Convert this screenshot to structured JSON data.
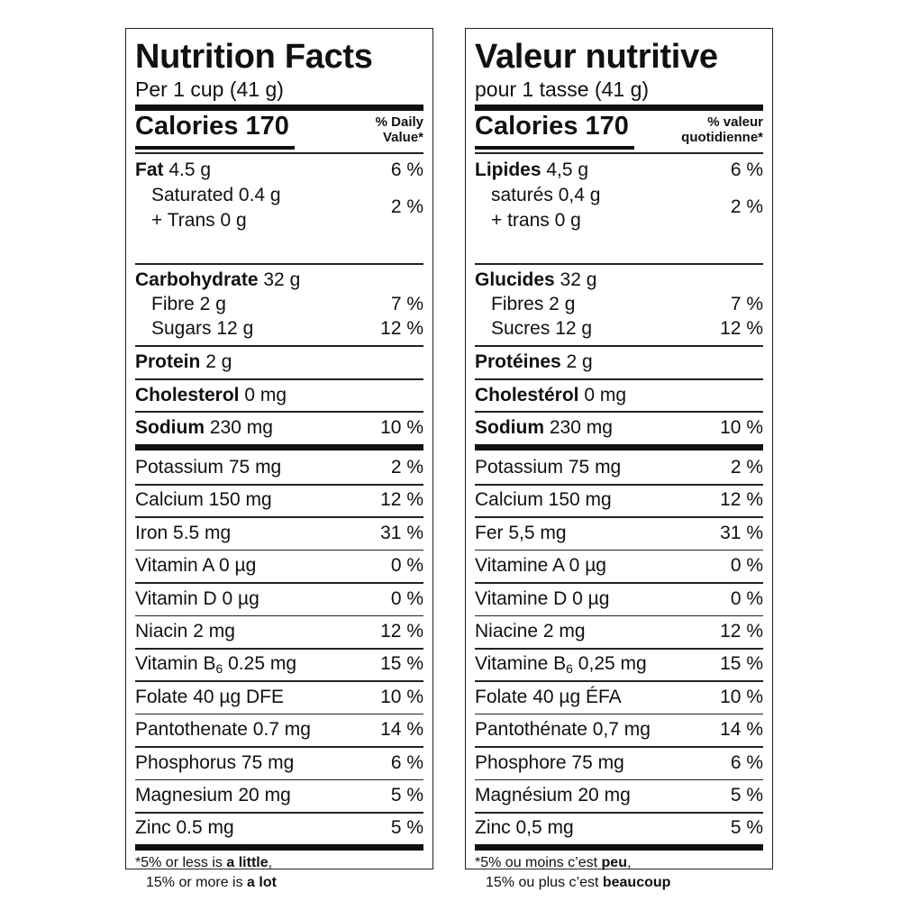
{
  "en": {
    "title": "Nutrition Facts",
    "serving": "Per 1 cup (41 g)",
    "calories": "Calories 170",
    "dv_line1": "% Daily",
    "dv_line2": "Value*",
    "fat": {
      "label": "Fat",
      "amount": "4.5 g",
      "dv": "6 %"
    },
    "saturated": "Saturated 0.4 g",
    "trans": "+ Trans 0 g",
    "sat_trans_dv": "2 %",
    "carb": {
      "label": "Carbohydrate",
      "amount": "32 g"
    },
    "fibre": {
      "label": "Fibre 2 g",
      "dv": "7 %"
    },
    "sugars": {
      "label": "Sugars 12 g",
      "dv": "12 %"
    },
    "protein": {
      "label": "Protein",
      "amount": "2 g"
    },
    "cholesterol": {
      "label": "Cholesterol",
      "amount": "0 mg"
    },
    "sodium": {
      "label": "Sodium",
      "amount": "230 mg",
      "dv": "10 %"
    },
    "micros": [
      {
        "label": "Potassium 75 mg",
        "dv": "2 %"
      },
      {
        "label": "Calcium 150 mg",
        "dv": "12 %"
      },
      {
        "label": "Iron 5.5 mg",
        "dv": "31 %"
      },
      {
        "label": "Vitamin A 0 µg",
        "dv": "0 %"
      },
      {
        "label": "Vitamin D 0 µg",
        "dv": "0 %"
      },
      {
        "label": "Niacin 2 mg",
        "dv": "12 %"
      },
      {
        "label_pre": "Vitamin B",
        "label_sub": "6",
        "label_post": " 0.25 mg",
        "dv": "15 %"
      },
      {
        "label": "Folate 40 µg DFE",
        "dv": "10 %"
      },
      {
        "label": "Pantothenate 0.7 mg",
        "dv": "14 %"
      },
      {
        "label": "Phosphorus 75 mg",
        "dv": "6 %"
      },
      {
        "label": "Magnesium 20 mg",
        "dv": "5 %"
      },
      {
        "label": "Zinc 0.5 mg",
        "dv": "5 %"
      }
    ],
    "foot1_pre": "*5% or less is ",
    "foot1_bold": "a little",
    "foot1_post": ",",
    "foot2_pre": "15% or more is ",
    "foot2_bold": "a lot"
  },
  "fr": {
    "title": "Valeur nutritive",
    "serving": "pour 1 tasse (41 g)",
    "calories": "Calories 170",
    "dv_line1": "% valeur",
    "dv_line2": "quotidienne*",
    "fat": {
      "label": "Lipides",
      "amount": "4,5 g",
      "dv": "6 %"
    },
    "saturated": "saturés 0,4 g",
    "trans": "+ trans 0 g",
    "sat_trans_dv": "2 %",
    "carb": {
      "label": "Glucides",
      "amount": "32 g"
    },
    "fibre": {
      "label": "Fibres 2 g",
      "dv": "7 %"
    },
    "sugars": {
      "label": "Sucres 12 g",
      "dv": "12 %"
    },
    "protein": {
      "label": "Protéines",
      "amount": "2 g"
    },
    "cholesterol": {
      "label": "Cholestérol",
      "amount": "0 mg"
    },
    "sodium": {
      "label": "Sodium",
      "amount": "230 mg",
      "dv": "10 %"
    },
    "micros": [
      {
        "label": "Potassium 75 mg",
        "dv": "2 %"
      },
      {
        "label": "Calcium 150 mg",
        "dv": "12 %"
      },
      {
        "label": "Fer 5,5 mg",
        "dv": "31 %"
      },
      {
        "label": "Vitamine A 0 µg",
        "dv": "0 %"
      },
      {
        "label": "Vitamine D 0 µg",
        "dv": "0 %"
      },
      {
        "label": "Niacine 2 mg",
        "dv": "12 %"
      },
      {
        "label_pre": "Vitamine B",
        "label_sub": "6",
        "label_post": " 0,25 mg",
        "dv": "15 %"
      },
      {
        "label": "Folate 40 µg ÉFA",
        "dv": "10 %"
      },
      {
        "label": "Pantothénate 0,7 mg",
        "dv": "14 %"
      },
      {
        "label": "Phosphore 75 mg",
        "dv": "6 %"
      },
      {
        "label": "Magnésium 20 mg",
        "dv": "5 %"
      },
      {
        "label": "Zinc 0,5 mg",
        "dv": "5 %"
      }
    ],
    "foot1_pre": "*5% ou moins c’est ",
    "foot1_bold": "peu",
    "foot1_post": ",",
    "foot2_pre": "15% ou plus c’est ",
    "foot2_bold": "beaucoup"
  }
}
